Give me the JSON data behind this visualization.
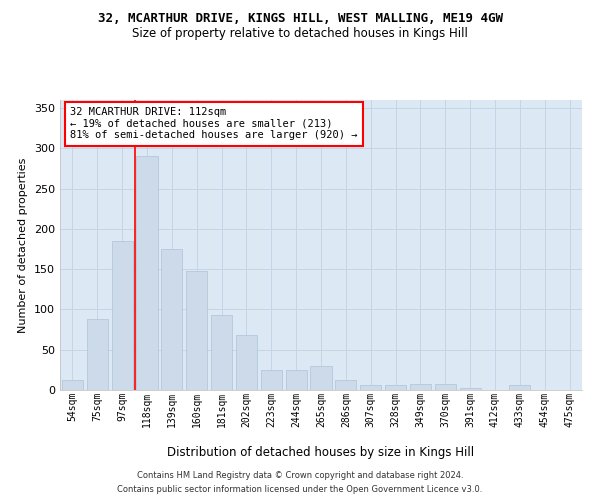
{
  "title": "32, MCARTHUR DRIVE, KINGS HILL, WEST MALLING, ME19 4GW",
  "subtitle": "Size of property relative to detached houses in Kings Hill",
  "xlabel": "Distribution of detached houses by size in Kings Hill",
  "ylabel": "Number of detached properties",
  "categories": [
    "54sqm",
    "75sqm",
    "97sqm",
    "118sqm",
    "139sqm",
    "160sqm",
    "181sqm",
    "202sqm",
    "223sqm",
    "244sqm",
    "265sqm",
    "286sqm",
    "307sqm",
    "328sqm",
    "349sqm",
    "370sqm",
    "391sqm",
    "412sqm",
    "433sqm",
    "454sqm",
    "475sqm"
  ],
  "values": [
    13,
    88,
    185,
    290,
    175,
    148,
    93,
    68,
    25,
    25,
    30,
    13,
    6,
    6,
    8,
    8,
    3,
    0,
    6,
    0,
    0
  ],
  "bar_color": "#ccdaea",
  "bar_edge_color": "#aec4d8",
  "grid_color": "#c5d5e5",
  "background_color": "#dce8f3",
  "annotation_text": "32 MCARTHUR DRIVE: 112sqm\n← 19% of detached houses are smaller (213)\n81% of semi-detached houses are larger (920) →",
  "annotation_box_color": "white",
  "annotation_border_color": "red",
  "footer_line1": "Contains HM Land Registry data © Crown copyright and database right 2024.",
  "footer_line2": "Contains public sector information licensed under the Open Government Licence v3.0.",
  "ylim": [
    0,
    360
  ],
  "yticks": [
    0,
    50,
    100,
    150,
    200,
    250,
    300,
    350
  ]
}
